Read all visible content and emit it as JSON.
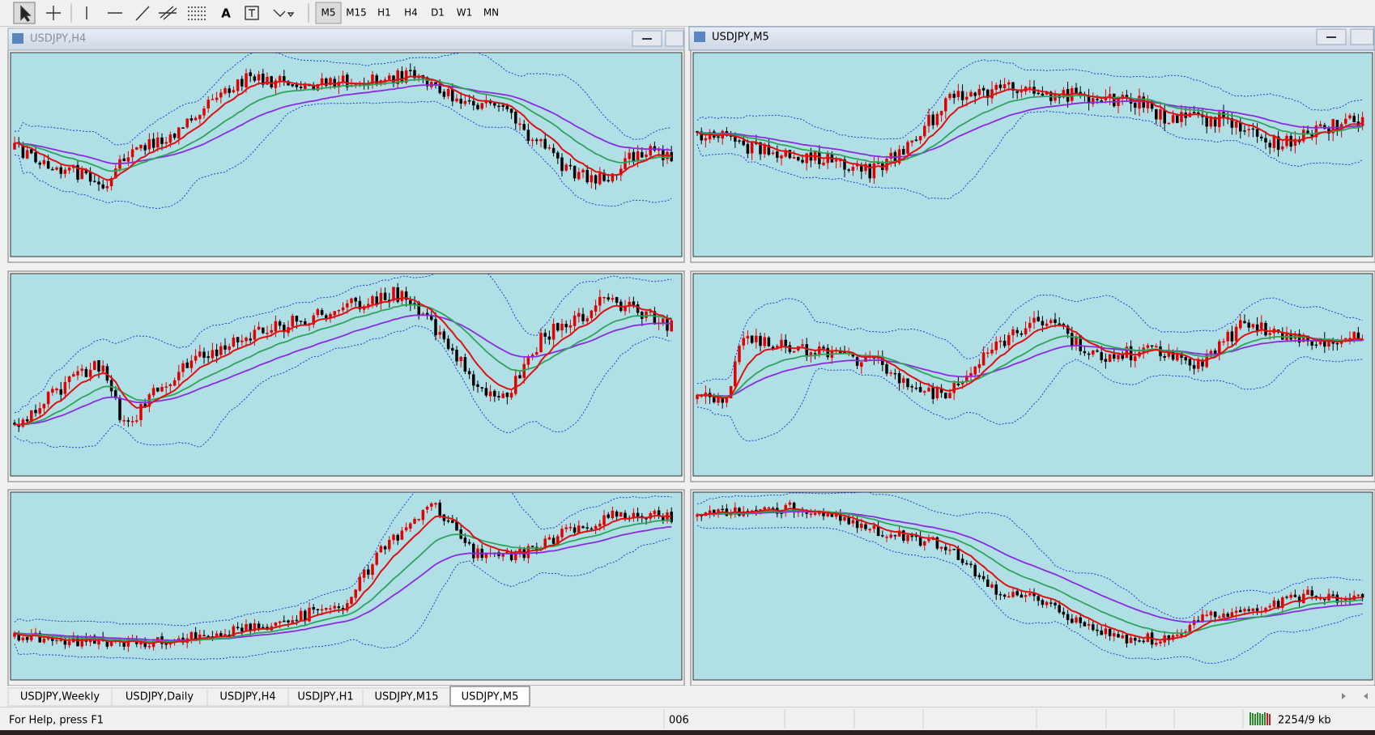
{
  "toolbar": {
    "text_icon": "A",
    "timeframes": [
      "M5",
      "M15",
      "H1",
      "H4",
      "D1",
      "W1",
      "MN"
    ]
  },
  "windows": [
    {
      "title": "USDJPY,H4"
    },
    {
      "title": "USDJPY,M5"
    }
  ],
  "tabs": [
    "USDJPY,Weekly",
    "USDJPY,Daily",
    "USDJPY,H4",
    "USDJPY,H1",
    "USDJPY,M15",
    "USDJPY,M5"
  ],
  "status": {
    "help": "For Help, press F1",
    "profile": "006",
    "traffic": "2254/9 kb"
  }
}
